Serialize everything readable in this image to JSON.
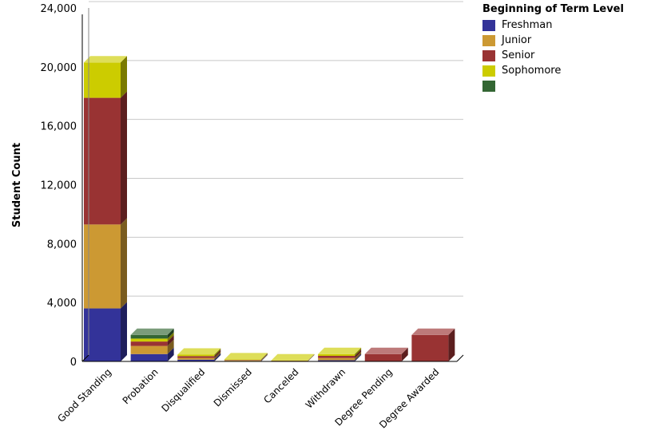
{
  "chart_data": {
    "type": "bar",
    "stacked": true,
    "style": "3d",
    "ylabel": "Student Count",
    "xlabel": "",
    "ylim": [
      0,
      24000
    ],
    "yticks": [
      "0",
      "4,000",
      "8,000",
      "12,000",
      "16,000",
      "20,000",
      "24,000"
    ],
    "ytick_values": [
      0,
      4000,
      8000,
      12000,
      16000,
      20000,
      24000
    ],
    "grid": true,
    "legend_title": "Beginning of Term Level",
    "legend_position": "top-right",
    "categories": [
      "Good Standing",
      "Probation",
      "Disqualified",
      "Dismissed",
      "Canceled",
      "Withdrawn",
      "Degree Pending",
      "Degree Awarded"
    ],
    "series": [
      {
        "name": "Freshman",
        "color": "#333399",
        "values": [
          3600,
          500,
          120,
          30,
          10,
          80,
          0,
          0
        ]
      },
      {
        "name": "Junior",
        "color": "#cc9933",
        "values": [
          5700,
          550,
          120,
          40,
          20,
          150,
          0,
          0
        ]
      },
      {
        "name": "Senior",
        "color": "#993333",
        "values": [
          8600,
          300,
          120,
          30,
          20,
          150,
          500,
          1800
        ]
      },
      {
        "name": "Sophomore",
        "color": "#cccc00",
        "values": [
          2400,
          200,
          100,
          40,
          20,
          120,
          0,
          0
        ]
      },
      {
        "name": "",
        "color": "#336633",
        "values": [
          0,
          250,
          0,
          0,
          0,
          0,
          0,
          0
        ]
      }
    ]
  }
}
